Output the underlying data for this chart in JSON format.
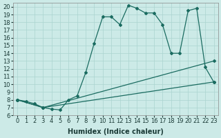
{
  "xlabel": "Humidex (Indice chaleur)",
  "xlim": [
    -0.5,
    23.5
  ],
  "ylim": [
    6,
    20.5
  ],
  "yticks": [
    6,
    7,
    8,
    9,
    10,
    11,
    12,
    13,
    14,
    15,
    16,
    17,
    18,
    19,
    20
  ],
  "xticks": [
    0,
    1,
    2,
    3,
    4,
    5,
    6,
    7,
    8,
    9,
    10,
    11,
    12,
    13,
    14,
    15,
    16,
    17,
    18,
    19,
    20,
    21,
    22,
    23
  ],
  "background_color": "#cceae7",
  "grid_color": "#aad4d0",
  "line_color": "#1a6b60",
  "line1_x": [
    0,
    1,
    2,
    3,
    4,
    5,
    6,
    7,
    8,
    9,
    10,
    11,
    12,
    13,
    14,
    15,
    16,
    17,
    18,
    19,
    20,
    21,
    22,
    23
  ],
  "line1_y": [
    8.0,
    7.8,
    7.5,
    7.0,
    6.8,
    6.7,
    8.0,
    8.5,
    11.5,
    15.3,
    18.7,
    18.7,
    17.7,
    20.2,
    19.8,
    19.2,
    19.2,
    17.7,
    14.0,
    14.0,
    19.5,
    19.8,
    12.2,
    10.3
  ],
  "line1_style": "-",
  "line2_x": [
    0,
    3,
    23
  ],
  "line2_y": [
    8.0,
    7.0,
    13.0
  ],
  "line2_style": "-",
  "line3_x": [
    0,
    3,
    23
  ],
  "line3_y": [
    8.0,
    7.0,
    10.3
  ],
  "line3_style": "-",
  "title_fontsize": 7,
  "axis_fontsize": 7,
  "tick_fontsize": 6
}
